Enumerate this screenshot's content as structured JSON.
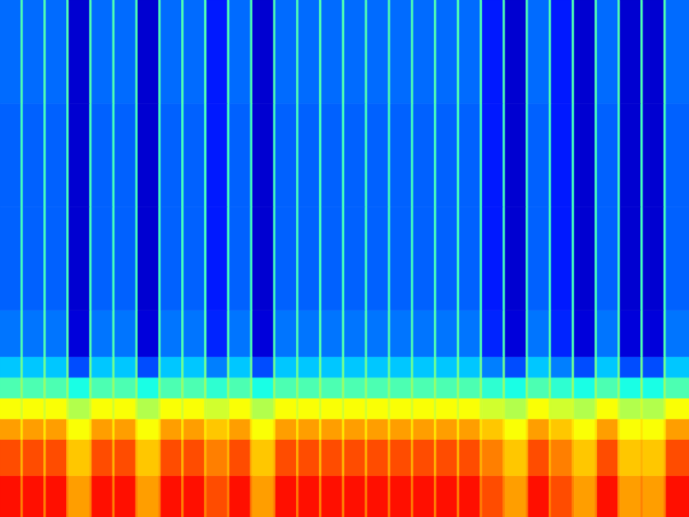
{
  "chart_data": {
    "type": "heatmap",
    "tick_labels": false,
    "xlim": [
      0,
      30
    ],
    "ylim": [
      0,
      100
    ],
    "zlim": [
      0,
      1
    ],
    "x_edges": [
      0,
      0.9,
      1,
      1.9,
      2,
      2.9,
      3,
      3.9,
      4,
      4.9,
      5,
      5.9,
      6,
      6.9,
      7,
      7.9,
      8,
      8.9,
      9,
      9.9,
      10,
      10.9,
      11,
      11.9,
      12,
      12.9,
      13,
      13.9,
      14,
      14.9,
      15,
      15.9,
      16,
      16.9,
      17,
      17.9,
      18,
      18.9,
      19,
      19.9,
      20,
      20.9,
      21,
      21.9,
      22,
      22.9,
      23,
      23.9,
      24,
      24.9,
      25,
      25.9,
      26,
      26.9,
      27,
      27.9,
      28,
      28.9,
      29,
      30
    ],
    "y_edges": [
      0,
      8,
      15,
      19,
      23,
      27,
      31,
      40,
      60,
      80,
      100
    ],
    "values": [
      [
        0.86,
        0.75,
        0.86,
        0.75,
        0.86,
        0.75,
        0.72,
        0.75,
        0.86,
        0.75,
        0.86,
        0.75,
        0.72,
        0.75,
        0.86,
        0.75,
        0.86,
        0.75,
        0.8,
        0.75,
        0.86,
        0.75,
        0.72,
        0.75,
        0.86,
        0.75,
        0.86,
        0.75,
        0.86,
        0.75,
        0.86,
        0.75,
        0.86,
        0.75,
        0.86,
        0.75,
        0.86,
        0.75,
        0.86,
        0.75,
        0.86,
        0.75,
        0.8,
        0.75,
        0.72,
        0.75,
        0.86,
        0.75,
        0.8,
        0.75,
        0.72,
        0.75,
        0.86,
        0.75,
        0.72,
        0.75,
        0.72,
        0.75,
        0.86
      ],
      [
        0.8,
        0.7,
        0.8,
        0.7,
        0.8,
        0.7,
        0.68,
        0.7,
        0.8,
        0.7,
        0.8,
        0.7,
        0.68,
        0.7,
        0.8,
        0.7,
        0.8,
        0.7,
        0.75,
        0.7,
        0.8,
        0.7,
        0.68,
        0.7,
        0.8,
        0.7,
        0.8,
        0.7,
        0.8,
        0.7,
        0.8,
        0.7,
        0.8,
        0.7,
        0.8,
        0.7,
        0.8,
        0.7,
        0.8,
        0.7,
        0.8,
        0.7,
        0.75,
        0.7,
        0.68,
        0.7,
        0.8,
        0.7,
        0.75,
        0.7,
        0.68,
        0.7,
        0.8,
        0.7,
        0.68,
        0.7,
        0.68,
        0.7,
        0.8
      ],
      [
        0.72,
        0.65,
        0.72,
        0.65,
        0.72,
        0.65,
        0.62,
        0.65,
        0.72,
        0.65,
        0.72,
        0.65,
        0.62,
        0.65,
        0.72,
        0.65,
        0.72,
        0.65,
        0.68,
        0.65,
        0.72,
        0.65,
        0.62,
        0.65,
        0.72,
        0.65,
        0.72,
        0.65,
        0.72,
        0.65,
        0.72,
        0.65,
        0.72,
        0.65,
        0.72,
        0.65,
        0.72,
        0.65,
        0.72,
        0.65,
        0.72,
        0.65,
        0.68,
        0.65,
        0.62,
        0.65,
        0.72,
        0.65,
        0.68,
        0.65,
        0.62,
        0.65,
        0.72,
        0.65,
        0.62,
        0.65,
        0.62,
        0.65,
        0.72
      ],
      [
        0.62,
        0.58,
        0.62,
        0.58,
        0.62,
        0.58,
        0.55,
        0.58,
        0.62,
        0.58,
        0.62,
        0.58,
        0.55,
        0.58,
        0.62,
        0.58,
        0.62,
        0.58,
        0.58,
        0.58,
        0.62,
        0.58,
        0.55,
        0.58,
        0.62,
        0.58,
        0.62,
        0.58,
        0.62,
        0.58,
        0.62,
        0.58,
        0.62,
        0.58,
        0.62,
        0.58,
        0.62,
        0.58,
        0.62,
        0.58,
        0.62,
        0.58,
        0.58,
        0.58,
        0.55,
        0.58,
        0.62,
        0.58,
        0.58,
        0.58,
        0.55,
        0.58,
        0.62,
        0.58,
        0.55,
        0.58,
        0.55,
        0.58,
        0.62
      ],
      [
        0.45,
        0.52,
        0.45,
        0.52,
        0.45,
        0.52,
        0.4,
        0.52,
        0.45,
        0.52,
        0.45,
        0.52,
        0.4,
        0.52,
        0.45,
        0.52,
        0.45,
        0.52,
        0.42,
        0.52,
        0.45,
        0.52,
        0.4,
        0.52,
        0.45,
        0.52,
        0.45,
        0.52,
        0.45,
        0.52,
        0.45,
        0.52,
        0.45,
        0.52,
        0.45,
        0.52,
        0.45,
        0.52,
        0.45,
        0.52,
        0.45,
        0.52,
        0.42,
        0.52,
        0.4,
        0.52,
        0.45,
        0.52,
        0.42,
        0.52,
        0.4,
        0.52,
        0.45,
        0.52,
        0.4,
        0.52,
        0.4,
        0.52,
        0.45
      ],
      [
        0.32,
        0.48,
        0.32,
        0.48,
        0.32,
        0.48,
        0.2,
        0.48,
        0.32,
        0.48,
        0.32,
        0.48,
        0.2,
        0.48,
        0.32,
        0.48,
        0.32,
        0.48,
        0.25,
        0.48,
        0.32,
        0.48,
        0.2,
        0.48,
        0.32,
        0.48,
        0.32,
        0.48,
        0.32,
        0.48,
        0.32,
        0.48,
        0.32,
        0.48,
        0.32,
        0.48,
        0.32,
        0.48,
        0.32,
        0.48,
        0.32,
        0.48,
        0.25,
        0.48,
        0.2,
        0.48,
        0.32,
        0.48,
        0.25,
        0.48,
        0.2,
        0.48,
        0.32,
        0.48,
        0.2,
        0.48,
        0.2,
        0.48,
        0.32
      ],
      [
        0.24,
        0.45,
        0.24,
        0.45,
        0.24,
        0.45,
        0.09,
        0.45,
        0.24,
        0.45,
        0.24,
        0.45,
        0.09,
        0.45,
        0.24,
        0.45,
        0.24,
        0.45,
        0.16,
        0.45,
        0.24,
        0.45,
        0.09,
        0.45,
        0.24,
        0.45,
        0.24,
        0.45,
        0.24,
        0.45,
        0.24,
        0.45,
        0.24,
        0.45,
        0.24,
        0.45,
        0.24,
        0.45,
        0.24,
        0.45,
        0.24,
        0.45,
        0.16,
        0.45,
        0.09,
        0.45,
        0.24,
        0.45,
        0.16,
        0.45,
        0.09,
        0.45,
        0.24,
        0.45,
        0.09,
        0.45,
        0.09,
        0.45,
        0.24
      ],
      [
        0.22,
        0.44,
        0.22,
        0.44,
        0.22,
        0.44,
        0.08,
        0.44,
        0.22,
        0.44,
        0.22,
        0.44,
        0.08,
        0.44,
        0.22,
        0.44,
        0.22,
        0.44,
        0.15,
        0.44,
        0.22,
        0.44,
        0.08,
        0.44,
        0.22,
        0.44,
        0.22,
        0.44,
        0.22,
        0.44,
        0.22,
        0.44,
        0.22,
        0.44,
        0.22,
        0.44,
        0.22,
        0.44,
        0.22,
        0.44,
        0.22,
        0.44,
        0.15,
        0.44,
        0.08,
        0.44,
        0.22,
        0.44,
        0.15,
        0.44,
        0.08,
        0.44,
        0.22,
        0.44,
        0.08,
        0.44,
        0.08,
        0.44,
        0.22
      ],
      [
        0.22,
        0.44,
        0.22,
        0.44,
        0.22,
        0.44,
        0.08,
        0.44,
        0.22,
        0.44,
        0.22,
        0.44,
        0.08,
        0.44,
        0.22,
        0.44,
        0.22,
        0.44,
        0.15,
        0.44,
        0.22,
        0.44,
        0.08,
        0.44,
        0.22,
        0.44,
        0.22,
        0.44,
        0.22,
        0.44,
        0.22,
        0.44,
        0.22,
        0.44,
        0.22,
        0.44,
        0.22,
        0.44,
        0.22,
        0.44,
        0.22,
        0.44,
        0.15,
        0.44,
        0.08,
        0.44,
        0.22,
        0.44,
        0.15,
        0.44,
        0.08,
        0.44,
        0.22,
        0.44,
        0.08,
        0.44,
        0.08,
        0.44,
        0.22
      ],
      [
        0.23,
        0.45,
        0.23,
        0.45,
        0.23,
        0.45,
        0.08,
        0.45,
        0.23,
        0.45,
        0.23,
        0.45,
        0.08,
        0.45,
        0.23,
        0.45,
        0.23,
        0.45,
        0.15,
        0.45,
        0.23,
        0.45,
        0.08,
        0.45,
        0.23,
        0.45,
        0.23,
        0.45,
        0.23,
        0.45,
        0.23,
        0.45,
        0.23,
        0.45,
        0.23,
        0.45,
        0.23,
        0.45,
        0.23,
        0.45,
        0.23,
        0.45,
        0.15,
        0.45,
        0.08,
        0.45,
        0.23,
        0.45,
        0.15,
        0.45,
        0.08,
        0.45,
        0.23,
        0.45,
        0.08,
        0.45,
        0.08,
        0.45,
        0.23
      ]
    ]
  }
}
